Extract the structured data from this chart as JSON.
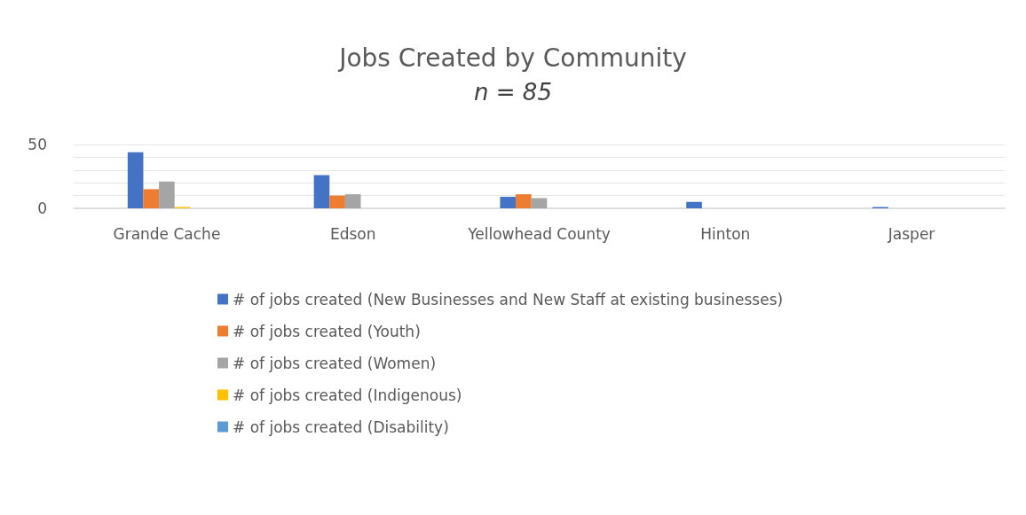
{
  "chart_data": {
    "type": "bar",
    "title": "Jobs Created by Community",
    "subtitle": "n = 85",
    "categories": [
      "Grande Cache",
      "Edson",
      "Yellowhead County",
      "Hinton",
      "Jasper"
    ],
    "series": [
      {
        "name": "# of jobs created (New Businesses and New Staff at existing businesses)",
        "color": "#4472c4",
        "values": [
          44,
          26,
          9,
          5,
          1
        ]
      },
      {
        "name": "# of jobs created (Youth)",
        "color": "#ed7d31",
        "values": [
          15,
          10,
          11,
          0,
          0
        ]
      },
      {
        "name": "# of jobs created (Women)",
        "color": "#a5a5a5",
        "values": [
          21,
          11,
          8,
          0,
          0
        ]
      },
      {
        "name": "# of jobs created (Indigenous)",
        "color": "#ffc000",
        "values": [
          1,
          0,
          0,
          0,
          0
        ]
      },
      {
        "name": "# of jobs created (Disability)",
        "color": "#5b9bd5",
        "values": [
          0,
          0,
          0,
          0,
          0
        ]
      }
    ],
    "ylim": [
      0,
      50
    ],
    "yticks": [
      0,
      {
        "value": 10,
        "label": null
      },
      {
        "value": 20,
        "label": null
      },
      {
        "value": 30,
        "label": null
      },
      {
        "value": 40,
        "label": null
      },
      50
    ],
    "grid": "y",
    "legend": "bottom"
  }
}
